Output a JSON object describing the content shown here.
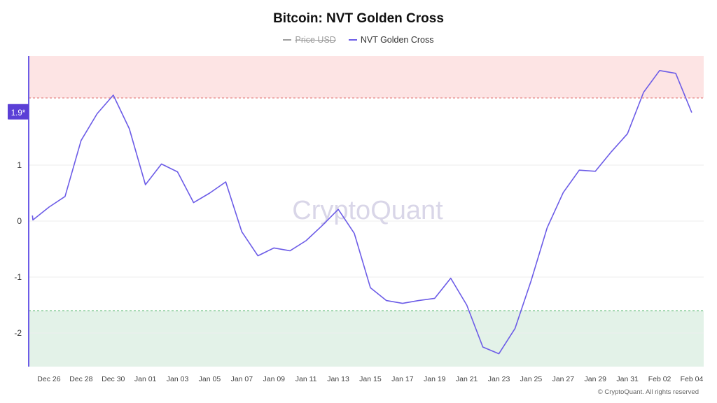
{
  "chart_data": {
    "type": "line",
    "title": "Bitcoin: NVT Golden Cross",
    "legend": [
      {
        "name": "Price USD",
        "color": "#9e9e9e",
        "hidden": true
      },
      {
        "name": "NVT Golden Cross",
        "color": "#6c5ce7",
        "hidden": false
      }
    ],
    "series": [
      {
        "name": "NVT Golden Cross",
        "color": "#6c5ce7",
        "x": [
          "2023-12-25",
          "2023-12-26",
          "2023-12-27",
          "2023-12-28",
          "2023-12-29",
          "2023-12-30",
          "2023-12-31",
          "2024-01-01",
          "2024-01-02",
          "2024-01-03",
          "2024-01-04",
          "2024-01-05",
          "2024-01-06",
          "2024-01-07",
          "2024-01-08",
          "2024-01-09",
          "2024-01-10",
          "2024-01-11",
          "2024-01-12",
          "2024-01-13",
          "2024-01-14",
          "2024-01-15",
          "2024-01-16",
          "2024-01-17",
          "2024-01-18",
          "2024-01-19",
          "2024-01-20",
          "2024-01-21",
          "2024-01-22",
          "2024-01-23",
          "2024-01-24",
          "2024-01-25",
          "2024-01-26",
          "2024-01-27",
          "2024-01-28",
          "2024-01-29",
          "2024-01-30",
          "2024-01-31",
          "2024-02-01",
          "2024-02-02",
          "2024-02-03",
          "2024-02-04"
        ],
        "values": [
          0.02,
          0.25,
          0.44,
          1.44,
          1.92,
          2.25,
          1.65,
          0.65,
          1.02,
          0.88,
          0.33,
          0.5,
          0.7,
          -0.19,
          -0.62,
          -0.48,
          -0.53,
          -0.35,
          -0.08,
          0.21,
          -0.22,
          -1.19,
          -1.42,
          -1.47,
          -1.42,
          -1.38,
          -1.02,
          -1.5,
          -2.25,
          -2.37,
          -1.92,
          -1.07,
          -0.12,
          0.51,
          0.91,
          0.89,
          1.24,
          1.56,
          2.3,
          2.69,
          2.64,
          1.94
        ],
        "start_offset": -0.03,
        "start_value": 0.1
      }
    ],
    "x_tick_labels": [
      "Dec 26",
      "Dec 28",
      "Dec 30",
      "Jan 01",
      "Jan 03",
      "Jan 05",
      "Jan 07",
      "Jan 09",
      "Jan 11",
      "Jan 13",
      "Jan 15",
      "Jan 17",
      "Jan 19",
      "Jan 21",
      "Jan 23",
      "Jan 25",
      "Jan 27",
      "Jan 29",
      "Jan 31",
      "Feb 02",
      "Feb 04"
    ],
    "y_ticks": [
      1,
      0,
      -1,
      -2
    ],
    "y_tick_labels": [
      "1",
      "0",
      "-1",
      "-2"
    ],
    "ylim": [
      -2.6,
      2.95
    ],
    "bands": [
      {
        "name": "overheated-zone",
        "from": 2.2,
        "to": 2.95,
        "color": "#fde4e4",
        "line_color": "#e06b6b"
      },
      {
        "name": "undervalued-zone",
        "from": -2.6,
        "to": -1.6,
        "color": "#e3f2e8",
        "line_color": "#58b870"
      }
    ],
    "current_value_label": "1.9*",
    "current_value_color": "#5b3fd6",
    "watermark": "CryptoQuant",
    "grid": true,
    "legend_position": "top-center"
  },
  "footer": {
    "credit": "© CryptoQuant. All rights reserved"
  }
}
